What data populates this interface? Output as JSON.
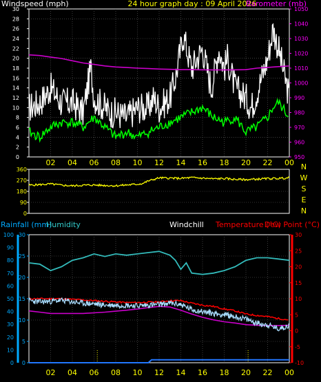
{
  "colors": {
    "frame": "#ffffff",
    "grid": "#666666",
    "text_white": "#ffffff",
    "text_yellow": "#ffff00",
    "text_magenta": "#ff00ff",
    "text_cyan": "#00aaff",
    "text_humidity": "#33cccc",
    "text_red": "#ff0000",
    "series_gust": "#ffffff",
    "series_avg": "#00ff00",
    "series_baro": "#cc00cc",
    "series_dir": "#ffff00",
    "series_humidity": "#33bbbb",
    "series_temp": "#ff0000",
    "series_dew": "#cc00cc",
    "series_windchill": "#aaddff",
    "series_rain": "#2277ff"
  },
  "chart_data": [
    {
      "id": "wind",
      "type": "line",
      "title": "24 hour graph day : 09 April 2026",
      "left_label": "Windspeed (mph)",
      "right_label": "Barometer (mb)",
      "x_ticks": [
        "02",
        "04",
        "06",
        "08",
        "10",
        "12",
        "14",
        "16",
        "18",
        "20",
        "22",
        "00"
      ],
      "y_left_ticks": [
        0,
        2,
        4,
        6,
        8,
        10,
        12,
        14,
        16,
        18,
        20,
        22,
        24,
        26,
        28,
        30
      ],
      "y_left_range": [
        0,
        30
      ],
      "y_right_ticks": [
        950,
        960,
        970,
        980,
        990,
        1000,
        1010,
        1020,
        1030,
        1040,
        1050
      ],
      "y_right_range": [
        950,
        1050
      ],
      "x_range": [
        0,
        24
      ],
      "series": [
        {
          "key": "gust",
          "x": [
            0,
            1,
            2,
            3,
            4,
            5,
            5.7,
            6,
            7,
            7.5,
            8,
            9,
            10,
            11,
            11.5,
            12,
            13,
            13.5,
            14,
            14.2,
            15,
            16,
            16.8,
            17,
            17.5,
            18,
            18.3,
            19,
            20,
            20.5,
            21,
            22,
            22.5,
            23,
            24
          ],
          "y": [
            10,
            11,
            14,
            11,
            11,
            9,
            18,
            12,
            10,
            9,
            9,
            8,
            10,
            10,
            12,
            10,
            12,
            16,
            22,
            25,
            18,
            22,
            14,
            16,
            22,
            18,
            20,
            14,
            12,
            10,
            13,
            20,
            26,
            22,
            12
          ]
        },
        {
          "key": "avg",
          "x": [
            0,
            1,
            2,
            3,
            4,
            5,
            6,
            7,
            8,
            9,
            10,
            11,
            12,
            13,
            14,
            15,
            16,
            17,
            18,
            19,
            20,
            21,
            22,
            22.5,
            23,
            24
          ],
          "y": [
            5,
            4,
            6,
            7,
            7,
            6,
            8,
            6,
            4,
            5,
            4,
            5,
            6,
            7,
            8,
            9,
            10,
            8,
            7,
            8,
            5,
            6,
            8,
            10,
            11,
            8
          ]
        },
        {
          "key": "baro",
          "x": [
            0,
            1,
            2,
            3,
            4,
            5,
            6,
            7,
            8,
            9,
            10,
            11,
            12,
            13,
            14,
            15,
            16,
            17,
            18,
            19,
            20,
            21,
            22,
            23,
            24
          ],
          "y": [
            1019,
            1018.5,
            1017.5,
            1016.5,
            1015,
            1013.5,
            1012.5,
            1011.5,
            1010.8,
            1010.4,
            1010,
            1009.7,
            1009.4,
            1009.2,
            1009,
            1009,
            1008.9,
            1008.8,
            1008.8,
            1008.9,
            1009,
            1010,
            1010.5,
            1011,
            1011.5
          ]
        }
      ]
    },
    {
      "id": "direction",
      "type": "line",
      "y_left_ticks": [
        0,
        90,
        180,
        270,
        360
      ],
      "y_left_range": [
        0,
        360
      ],
      "compass_labels": [
        "N",
        "W",
        "S",
        "E",
        "N"
      ],
      "x_range": [
        0,
        24
      ],
      "series": [
        {
          "key": "dir",
          "x": [
            0,
            1,
            2,
            3,
            4,
            5,
            6,
            7,
            8,
            9,
            10,
            10.5,
            11,
            12,
            13,
            14,
            15,
            16,
            17,
            18,
            19,
            20,
            21,
            22,
            23,
            24
          ],
          "y": [
            230,
            235,
            240,
            230,
            225,
            230,
            232,
            228,
            226,
            232,
            238,
            245,
            265,
            290,
            288,
            286,
            292,
            288,
            282,
            285,
            278,
            276,
            280,
            284,
            286,
            290
          ]
        }
      ]
    },
    {
      "id": "temp",
      "type": "line",
      "labels": {
        "rain": "Rainfall (mm)",
        "humidity": "Humidity",
        "windchill": "Windchill",
        "temperature": "Temperature (°C)",
        "dew": "Dew Point (°C)"
      },
      "x_ticks": [
        "02",
        "04",
        "06",
        "08",
        "10",
        "12",
        "14",
        "16",
        "18",
        "20",
        "22",
        "00"
      ],
      "rain_ticks": [
        0,
        5,
        10,
        15,
        20,
        25,
        30
      ],
      "rain_range": [
        0,
        30
      ],
      "humidity_ticks": [
        0,
        10,
        20,
        30,
        40,
        50,
        60,
        70,
        80,
        90,
        100
      ],
      "humidity_range": [
        0,
        100
      ],
      "temp_ticks": [
        -10,
        -5,
        0,
        5,
        10,
        15,
        20,
        25,
        30
      ],
      "temp_range": [
        -10,
        30
      ],
      "x_range": [
        0,
        24
      ],
      "series": [
        {
          "key": "humidity",
          "x": [
            0,
            1,
            2,
            3,
            4,
            5,
            6,
            7,
            8,
            9,
            10,
            11,
            12,
            13,
            13.5,
            14,
            14.5,
            15,
            16,
            17,
            18,
            19,
            20,
            21,
            22,
            23,
            24
          ],
          "y": [
            78,
            77,
            72,
            75,
            80,
            82,
            85,
            83,
            85,
            84,
            85,
            86,
            87,
            84,
            80,
            73,
            78,
            70,
            69,
            70,
            72,
            75,
            80,
            82,
            82,
            81,
            80
          ]
        },
        {
          "key": "temperature",
          "x": [
            0,
            1,
            2,
            3,
            4,
            5,
            6,
            7,
            8,
            9,
            10,
            11,
            12,
            13,
            14,
            15,
            16,
            17,
            18,
            19,
            20,
            21,
            22,
            23,
            24
          ],
          "y": [
            10,
            10,
            10,
            10,
            9.8,
            9.6,
            9.4,
            9.2,
            9.0,
            8.8,
            8.8,
            8.9,
            9.0,
            9.4,
            9.4,
            8.6,
            8.0,
            7.6,
            6.8,
            6.2,
            5.2,
            4.8,
            4.4,
            3.8,
            3.4
          ]
        },
        {
          "key": "dew",
          "x": [
            0,
            1,
            2,
            3,
            4,
            5,
            6,
            7,
            8,
            9,
            10,
            11,
            12,
            13,
            14,
            15,
            16,
            17,
            18,
            19,
            20,
            21,
            22,
            23,
            24
          ],
          "y": [
            6.2,
            5.8,
            5.4,
            5.4,
            5.4,
            5.4,
            5.6,
            5.8,
            6.1,
            6.4,
            6.8,
            7.2,
            7.6,
            7.4,
            6.4,
            5.2,
            4.2,
            3.4,
            2.8,
            2.4,
            1.9,
            1.7,
            1.6,
            1.6,
            1.7
          ]
        },
        {
          "key": "windchill",
          "x": [
            0,
            1,
            2,
            3,
            4,
            5,
            6,
            7,
            8,
            9,
            10,
            11,
            12,
            13,
            14,
            15,
            16,
            17,
            18,
            19,
            20,
            21,
            22,
            23,
            24
          ],
          "y": [
            9.4,
            9.0,
            9.2,
            9.5,
            9.0,
            8.6,
            8.4,
            8.0,
            8.0,
            8.0,
            7.8,
            8.0,
            8.2,
            8.6,
            8.2,
            6.6,
            6.0,
            5.4,
            5.0,
            4.4,
            3.6,
            2.4,
            1.8,
            0.6,
            1.6
          ]
        },
        {
          "key": "rain",
          "x": [
            0,
            11,
            11.3,
            24
          ],
          "y": [
            0,
            0,
            0.7,
            0.7
          ]
        }
      ],
      "markers_x": [
        6.3,
        20.2
      ]
    }
  ]
}
